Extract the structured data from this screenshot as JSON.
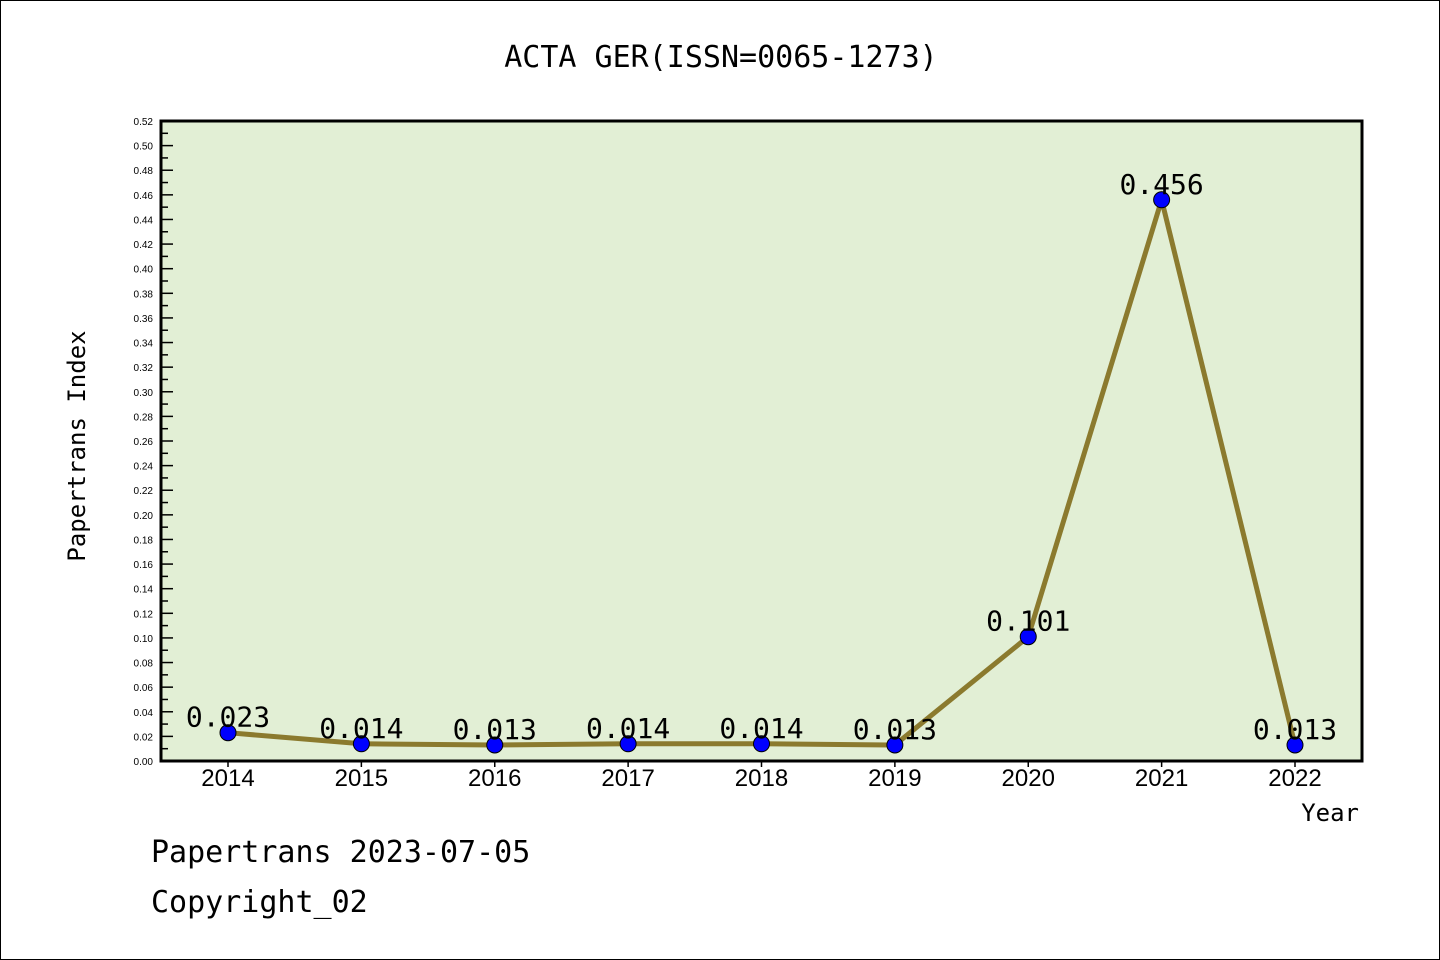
{
  "chart_data": {
    "type": "line",
    "title": "ACTA GER(ISSN=0065-1273)",
    "xlabel": "Year",
    "ylabel": "Papertrans Index",
    "categories": [
      "2014",
      "2015",
      "2016",
      "2017",
      "2018",
      "2019",
      "2020",
      "2021",
      "2022"
    ],
    "series": [
      {
        "name": "Papertrans Index",
        "values": [
          0.023,
          0.014,
          0.013,
          0.014,
          0.014,
          0.013,
          0.101,
          0.456,
          0.013
        ]
      }
    ],
    "data_labels": [
      "0.023",
      "0.014",
      "0.013",
      "0.014",
      "0.014",
      "0.013",
      "0.101",
      "0.456",
      "0.013"
    ],
    "ylim": [
      0,
      0.52
    ],
    "ytick_step": 0.02,
    "grid": false,
    "colors": {
      "line": "#8b7a2e",
      "marker": "#0000ff",
      "plot_bg": "#e2efd5"
    }
  },
  "footer": {
    "line1": "Papertrans 2023-07-05",
    "line2": "Copyright_02"
  }
}
